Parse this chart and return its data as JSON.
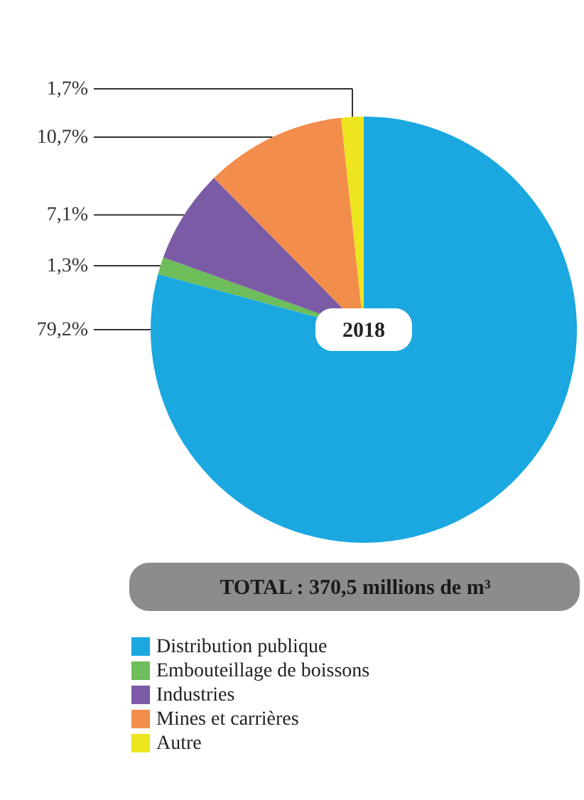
{
  "chart_data": {
    "type": "pie",
    "categories": [
      "Distribution publique",
      "Embouteillage de boissons",
      "Industries",
      "Mines et carrières",
      "Autre"
    ],
    "values": [
      79.2,
      1.3,
      7.1,
      10.7,
      1.7
    ],
    "value_labels": [
      "79,2%",
      "1,3%",
      "7,1%",
      "10,7%",
      "1,7%"
    ],
    "colors": [
      "#1ba8e0",
      "#6dbd5b",
      "#7b5ba6",
      "#f38d4b",
      "#ece51f"
    ],
    "annotations": [
      "2018",
      "TOTAL : 370,5 millions de m³"
    ],
    "legend": "bottom"
  }
}
